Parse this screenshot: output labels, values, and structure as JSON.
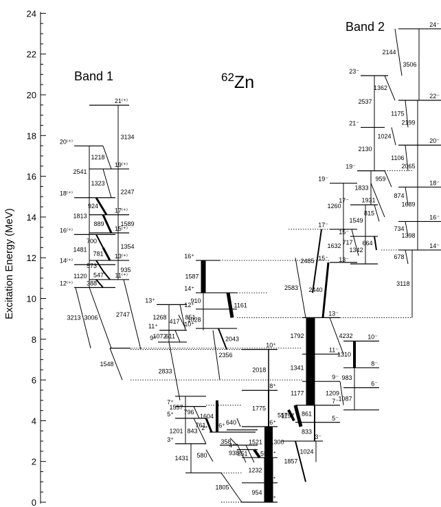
{
  "title": "62Zn",
  "title_main": "62",
  "title_sub": "Zn",
  "band1_label": "Band 1",
  "band2_label": "Band 2",
  "axis": {
    "ylabel": "Excitation Energy (MeV)",
    "ticks": [
      "0",
      "2",
      "4",
      "6",
      "8",
      "10",
      "12",
      "14",
      "16",
      "18",
      "20",
      "22",
      "24"
    ],
    "range_mev": [
      0,
      24
    ]
  },
  "spin_labels": [
    "0⁺",
    "2⁺",
    "4⁺",
    "6⁺",
    "8⁺",
    "10⁺",
    "3⁺",
    "5⁺",
    "7⁺",
    "9⁺",
    "11⁺",
    "13⁺",
    "12⁺",
    "14⁺",
    "16⁺",
    "3⁻",
    "5⁻",
    "7⁻",
    "9⁻",
    "11⁻",
    "13⁻",
    "6⁻",
    "8⁻",
    "10⁻",
    "15⁻",
    "17⁻",
    "19⁻",
    "21⁻",
    "23⁻",
    "12⁽⁺⁾",
    "14⁽⁺⁾",
    "16⁽⁺⁾",
    "18⁽⁺⁾",
    "20⁽⁺⁾",
    "11⁽⁺⁾",
    "13⁽⁺⁾",
    "15⁽⁺⁾",
    "17⁽⁺⁾",
    "19⁽⁺⁾",
    "21⁽⁺⁾",
    "14⁻",
    "16⁻",
    "18⁻",
    "20⁻",
    "22⁻",
    "24⁻"
  ],
  "transition_labels": [
    "954",
    "1232",
    "1521",
    "1300",
    "1775",
    "2018",
    "1805",
    "851",
    "938",
    "557",
    "358",
    "1201",
    "1431",
    "580",
    "843",
    "761",
    "1604",
    "640",
    "1557",
    "796",
    "2833",
    "1072",
    "611",
    "1268",
    "851",
    "417",
    "910",
    "1028",
    "1587",
    "1161",
    "2043",
    "2356",
    "1548",
    "3213",
    "3006",
    "2747",
    "1120",
    "573",
    "547",
    "388",
    "935",
    "1354",
    "781",
    "1481",
    "700",
    "1589",
    "889",
    "1813",
    "924",
    "2247",
    "1323",
    "2541",
    "1218",
    "3134",
    "1024",
    "1857",
    "833",
    "861",
    "1197",
    "557",
    "1177",
    "1341",
    "1792",
    "1209",
    "983",
    "1087",
    "1310",
    "4232",
    "2440",
    "1632",
    "2583",
    "2485",
    "1260",
    "717",
    "1342",
    "664",
    "678",
    "3118",
    "1398",
    "734",
    "1549",
    "815",
    "1689",
    "874",
    "1833",
    "959",
    "2065",
    "1931",
    "1106",
    "2130",
    "1024",
    "2199",
    "1175",
    "2537",
    "1362",
    "3506",
    "2144"
  ]
}
